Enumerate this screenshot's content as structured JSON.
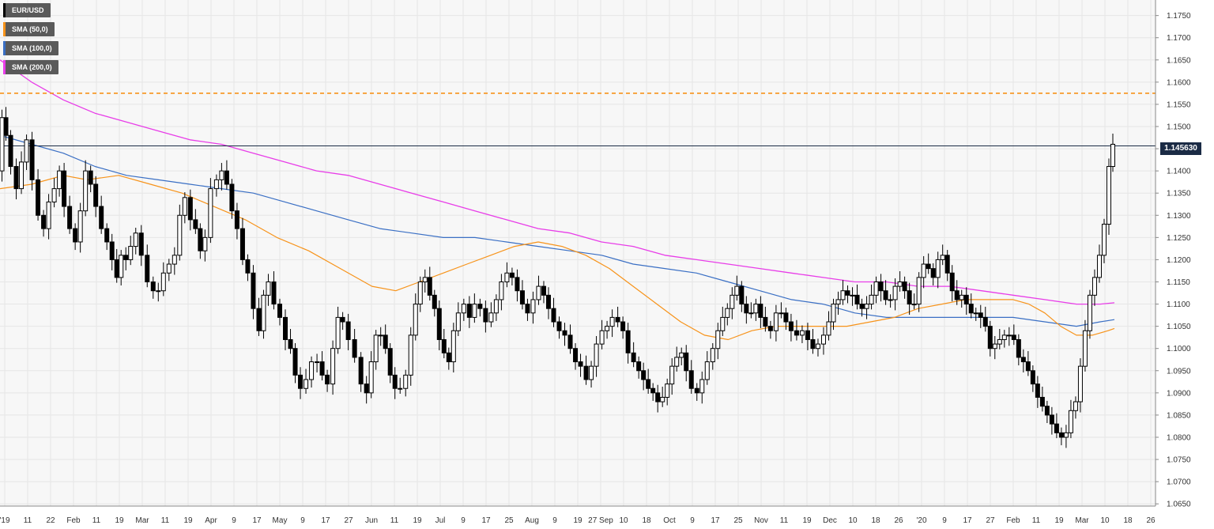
{
  "chart_data": {
    "type": "candlestick",
    "symbol": "EUR/USD",
    "last_price_label": "1.145630",
    "last_price": 1.14563,
    "resistance_level": 1.1575,
    "ylim": [
      1.0645,
      1.1785
    ],
    "y_ticks": [
      "1.0650",
      "1.0700",
      "1.0750",
      "1.0800",
      "1.0850",
      "1.0900",
      "1.0950",
      "1.1000",
      "1.1050",
      "1.1100",
      "1.1150",
      "1.1200",
      "1.1250",
      "1.1300",
      "1.1350",
      "1.1400",
      "1.1450",
      "1.1500",
      "1.1550",
      "1.1600",
      "1.1650",
      "1.1700",
      "1.1750"
    ],
    "x_ticks": [
      "'19",
      "11",
      "22",
      "Feb",
      "11",
      "19",
      "Mar",
      "11",
      "19",
      "Apr",
      "9",
      "17",
      "May",
      "9",
      "17",
      "27",
      "Jun",
      "11",
      "19",
      "Jul",
      "9",
      "17",
      "25",
      "Aug",
      "9",
      "19",
      "27 Sep",
      "10",
      "18",
      "Oct",
      "9",
      "17",
      "25",
      "Nov",
      "11",
      "19",
      "Dec",
      "10",
      "18",
      "26",
      "'20",
      "9",
      "17",
      "27",
      "Feb",
      "11",
      "19",
      "Mar",
      "10",
      "18",
      "26"
    ],
    "legend": [
      {
        "name": "EUR/USD",
        "color": "#000000"
      },
      {
        "name": "SMA (50,0)",
        "color": "#f7931a"
      },
      {
        "name": "SMA (100,0)",
        "color": "#3a6fc4"
      },
      {
        "name": "SMA (200,0)",
        "color": "#e83de8"
      }
    ],
    "price_path": [
      [
        0,
        1.14
      ],
      [
        5,
        1.152
      ],
      [
        10,
        1.148
      ],
      [
        17,
        1.141
      ],
      [
        24,
        1.136
      ],
      [
        30,
        1.142
      ],
      [
        37,
        1.147
      ],
      [
        44,
        1.138
      ],
      [
        52,
        1.13
      ],
      [
        58,
        1.127
      ],
      [
        65,
        1.133
      ],
      [
        72,
        1.136
      ],
      [
        78,
        1.14
      ],
      [
        84,
        1.132
      ],
      [
        92,
        1.127
      ],
      [
        98,
        1.124
      ],
      [
        105,
        1.131
      ],
      [
        111,
        1.14
      ],
      [
        118,
        1.137
      ],
      [
        124,
        1.132
      ],
      [
        132,
        1.127
      ],
      [
        138,
        1.124
      ],
      [
        145,
        1.12
      ],
      [
        150,
        1.116
      ],
      [
        156,
        1.121
      ],
      [
        162,
        1.12
      ],
      [
        168,
        1.123
      ],
      [
        175,
        1.126
      ],
      [
        182,
        1.121
      ],
      [
        190,
        1.115
      ],
      [
        197,
        1.113
      ],
      [
        203,
        1.113
      ],
      [
        210,
        1.117
      ],
      [
        217,
        1.119
      ],
      [
        224,
        1.121
      ],
      [
        230,
        1.13
      ],
      [
        237,
        1.134
      ],
      [
        244,
        1.129
      ],
      [
        250,
        1.127
      ],
      [
        256,
        1.122
      ],
      [
        262,
        1.125
      ],
      [
        270,
        1.136
      ],
      [
        277,
        1.138
      ],
      [
        283,
        1.14
      ],
      [
        290,
        1.137
      ],
      [
        296,
        1.131
      ],
      [
        303,
        1.127
      ],
      [
        310,
        1.12
      ],
      [
        316,
        1.117
      ],
      [
        324,
        1.109
      ],
      [
        330,
        1.104
      ],
      [
        336,
        1.112
      ],
      [
        342,
        1.115
      ],
      [
        350,
        1.11
      ],
      [
        357,
        1.107
      ],
      [
        364,
        1.102
      ],
      [
        370,
        1.1
      ],
      [
        376,
        1.094
      ],
      [
        383,
        1.091
      ],
      [
        390,
        1.093
      ],
      [
        397,
        1.097
      ],
      [
        404,
        1.097
      ],
      [
        410,
        1.094
      ],
      [
        417,
        1.092
      ],
      [
        424,
        1.1
      ],
      [
        430,
        1.107
      ],
      [
        436,
        1.106
      ],
      [
        444,
        1.102
      ],
      [
        452,
        1.098
      ],
      [
        460,
        1.092
      ],
      [
        466,
        1.09
      ],
      [
        472,
        1.097
      ],
      [
        478,
        1.103
      ],
      [
        484,
        1.103
      ],
      [
        490,
        1.1
      ],
      [
        496,
        1.094
      ],
      [
        502,
        1.091
      ],
      [
        509,
        1.091
      ],
      [
        516,
        1.094
      ],
      [
        522,
        1.103
      ],
      [
        528,
        1.11
      ],
      [
        534,
        1.115
      ],
      [
        540,
        1.116
      ],
      [
        546,
        1.112
      ],
      [
        552,
        1.109
      ],
      [
        558,
        1.102
      ],
      [
        564,
        1.099
      ],
      [
        570,
        1.097
      ],
      [
        576,
        1.104
      ],
      [
        582,
        1.108
      ],
      [
        590,
        1.11
      ],
      [
        596,
        1.107
      ],
      [
        603,
        1.11
      ],
      [
        610,
        1.109
      ],
      [
        617,
        1.106
      ],
      [
        624,
        1.108
      ],
      [
        630,
        1.111
      ],
      [
        637,
        1.115
      ],
      [
        644,
        1.117
      ],
      [
        650,
        1.116
      ],
      [
        657,
        1.113
      ],
      [
        663,
        1.11
      ],
      [
        670,
        1.108
      ],
      [
        677,
        1.111
      ],
      [
        684,
        1.114
      ],
      [
        690,
        1.112
      ],
      [
        696,
        1.109
      ],
      [
        703,
        1.106
      ],
      [
        710,
        1.104
      ],
      [
        717,
        1.103
      ],
      [
        724,
        1.1
      ],
      [
        730,
        1.097
      ],
      [
        737,
        1.096
      ],
      [
        744,
        1.093
      ],
      [
        750,
        1.096
      ],
      [
        757,
        1.101
      ],
      [
        764,
        1.104
      ],
      [
        770,
        1.105
      ],
      [
        777,
        1.107
      ],
      [
        784,
        1.106
      ],
      [
        790,
        1.104
      ],
      [
        797,
        1.099
      ],
      [
        804,
        1.097
      ],
      [
        810,
        1.095
      ],
      [
        816,
        1.093
      ],
      [
        822,
        1.091
      ],
      [
        828,
        1.09
      ],
      [
        834,
        1.088
      ],
      [
        840,
        1.089
      ],
      [
        846,
        1.092
      ],
      [
        852,
        1.096
      ],
      [
        858,
        1.098
      ],
      [
        864,
        1.099
      ],
      [
        870,
        1.095
      ],
      [
        877,
        1.091
      ],
      [
        884,
        1.09
      ],
      [
        890,
        1.093
      ],
      [
        897,
        1.097
      ],
      [
        904,
        1.1
      ],
      [
        910,
        1.104
      ],
      [
        916,
        1.107
      ],
      [
        922,
        1.109
      ],
      [
        928,
        1.112
      ],
      [
        934,
        1.114
      ],
      [
        940,
        1.11
      ],
      [
        946,
        1.108
      ],
      [
        952,
        1.108
      ],
      [
        958,
        1.11
      ],
      [
        964,
        1.107
      ],
      [
        970,
        1.105
      ],
      [
        977,
        1.104
      ],
      [
        984,
        1.108
      ],
      [
        990,
        1.108
      ],
      [
        996,
        1.106
      ],
      [
        1003,
        1.104
      ],
      [
        1010,
        1.103
      ],
      [
        1017,
        1.104
      ],
      [
        1024,
        1.102
      ],
      [
        1030,
        1.1
      ],
      [
        1037,
        1.101
      ],
      [
        1044,
        1.103
      ],
      [
        1050,
        1.106
      ],
      [
        1056,
        1.11
      ],
      [
        1062,
        1.111
      ],
      [
        1068,
        1.113
      ],
      [
        1074,
        1.112
      ],
      [
        1080,
        1.112
      ],
      [
        1086,
        1.11
      ],
      [
        1092,
        1.109
      ],
      [
        1098,
        1.11
      ],
      [
        1104,
        1.112
      ],
      [
        1110,
        1.115
      ],
      [
        1116,
        1.113
      ],
      [
        1122,
        1.111
      ],
      [
        1128,
        1.111
      ],
      [
        1134,
        1.114
      ],
      [
        1140,
        1.115
      ],
      [
        1146,
        1.113
      ],
      [
        1152,
        1.11
      ],
      [
        1158,
        1.11
      ],
      [
        1164,
        1.116
      ],
      [
        1170,
        1.119
      ],
      [
        1176,
        1.118
      ],
      [
        1182,
        1.116
      ],
      [
        1188,
        1.12
      ],
      [
        1194,
        1.121
      ],
      [
        1200,
        1.117
      ],
      [
        1206,
        1.113
      ],
      [
        1212,
        1.111
      ],
      [
        1218,
        1.112
      ],
      [
        1224,
        1.11
      ],
      [
        1230,
        1.108
      ],
      [
        1236,
        1.108
      ],
      [
        1242,
        1.107
      ],
      [
        1248,
        1.105
      ],
      [
        1254,
        1.1
      ],
      [
        1260,
        1.101
      ],
      [
        1266,
        1.102
      ],
      [
        1272,
        1.103
      ],
      [
        1278,
        1.103
      ],
      [
        1284,
        1.102
      ],
      [
        1290,
        1.098
      ],
      [
        1296,
        1.097
      ],
      [
        1302,
        1.095
      ],
      [
        1308,
        1.092
      ],
      [
        1314,
        1.089
      ],
      [
        1320,
        1.087
      ],
      [
        1326,
        1.085
      ],
      [
        1332,
        1.083
      ],
      [
        1338,
        1.081
      ],
      [
        1344,
        1.08
      ],
      [
        1350,
        1.081
      ],
      [
        1356,
        1.086
      ],
      [
        1362,
        1.088
      ],
      [
        1368,
        1.096
      ],
      [
        1374,
        1.104
      ],
      [
        1380,
        1.112
      ],
      [
        1386,
        1.116
      ],
      [
        1392,
        1.121
      ],
      [
        1398,
        1.128
      ],
      [
        1404,
        1.141
      ],
      [
        1408,
        1.146
      ]
    ],
    "sma50_path": [
      [
        0,
        1.136
      ],
      [
        40,
        1.137
      ],
      [
        80,
        1.139
      ],
      [
        110,
        1.138
      ],
      [
        150,
        1.139
      ],
      [
        190,
        1.137
      ],
      [
        230,
        1.135
      ],
      [
        270,
        1.132
      ],
      [
        310,
        1.129
      ],
      [
        350,
        1.125
      ],
      [
        390,
        1.122
      ],
      [
        430,
        1.118
      ],
      [
        470,
        1.114
      ],
      [
        500,
        1.113
      ],
      [
        530,
        1.115
      ],
      [
        560,
        1.117
      ],
      [
        590,
        1.119
      ],
      [
        620,
        1.121
      ],
      [
        650,
        1.123
      ],
      [
        680,
        1.124
      ],
      [
        710,
        1.123
      ],
      [
        740,
        1.121
      ],
      [
        770,
        1.118
      ],
      [
        800,
        1.114
      ],
      [
        830,
        1.11
      ],
      [
        860,
        1.106
      ],
      [
        890,
        1.103
      ],
      [
        920,
        1.102
      ],
      [
        950,
        1.104
      ],
      [
        980,
        1.105
      ],
      [
        1010,
        1.105
      ],
      [
        1040,
        1.105
      ],
      [
        1070,
        1.105
      ],
      [
        1100,
        1.106
      ],
      [
        1130,
        1.107
      ],
      [
        1160,
        1.109
      ],
      [
        1190,
        1.11
      ],
      [
        1220,
        1.111
      ],
      [
        1250,
        1.111
      ],
      [
        1280,
        1.111
      ],
      [
        1300,
        1.11
      ],
      [
        1320,
        1.108
      ],
      [
        1340,
        1.105
      ],
      [
        1360,
        1.103
      ],
      [
        1380,
        1.103
      ],
      [
        1400,
        1.104
      ],
      [
        1408,
        1.1045
      ]
    ],
    "sma100_path": [
      [
        0,
        1.148
      ],
      [
        40,
        1.146
      ],
      [
        80,
        1.144
      ],
      [
        120,
        1.141
      ],
      [
        160,
        1.139
      ],
      [
        200,
        1.138
      ],
      [
        240,
        1.137
      ],
      [
        280,
        1.136
      ],
      [
        320,
        1.135
      ],
      [
        360,
        1.133
      ],
      [
        400,
        1.131
      ],
      [
        440,
        1.129
      ],
      [
        480,
        1.127
      ],
      [
        520,
        1.126
      ],
      [
        560,
        1.125
      ],
      [
        600,
        1.125
      ],
      [
        640,
        1.124
      ],
      [
        680,
        1.123
      ],
      [
        720,
        1.122
      ],
      [
        760,
        1.121
      ],
      [
        800,
        1.119
      ],
      [
        840,
        1.118
      ],
      [
        880,
        1.117
      ],
      [
        920,
        1.115
      ],
      [
        960,
        1.113
      ],
      [
        1000,
        1.111
      ],
      [
        1040,
        1.11
      ],
      [
        1080,
        1.108
      ],
      [
        1120,
        1.107
      ],
      [
        1160,
        1.107
      ],
      [
        1200,
        1.107
      ],
      [
        1240,
        1.107
      ],
      [
        1280,
        1.107
      ],
      [
        1320,
        1.106
      ],
      [
        1360,
        1.105
      ],
      [
        1390,
        1.106
      ],
      [
        1408,
        1.1065
      ]
    ],
    "sma200_path": [
      [
        0,
        1.165
      ],
      [
        40,
        1.16
      ],
      [
        80,
        1.156
      ],
      [
        120,
        1.153
      ],
      [
        160,
        1.151
      ],
      [
        200,
        1.149
      ],
      [
        240,
        1.147
      ],
      [
        280,
        1.146
      ],
      [
        320,
        1.144
      ],
      [
        360,
        1.142
      ],
      [
        400,
        1.14
      ],
      [
        440,
        1.139
      ],
      [
        480,
        1.137
      ],
      [
        520,
        1.135
      ],
      [
        560,
        1.133
      ],
      [
        600,
        1.131
      ],
      [
        640,
        1.129
      ],
      [
        680,
        1.127
      ],
      [
        720,
        1.126
      ],
      [
        760,
        1.124
      ],
      [
        800,
        1.123
      ],
      [
        840,
        1.121
      ],
      [
        880,
        1.12
      ],
      [
        920,
        1.119
      ],
      [
        960,
        1.118
      ],
      [
        1000,
        1.117
      ],
      [
        1040,
        1.116
      ],
      [
        1080,
        1.115
      ],
      [
        1120,
        1.115
      ],
      [
        1160,
        1.114
      ],
      [
        1200,
        1.114
      ],
      [
        1240,
        1.113
      ],
      [
        1280,
        1.112
      ],
      [
        1320,
        1.111
      ],
      [
        1360,
        1.11
      ],
      [
        1390,
        1.11
      ],
      [
        1408,
        1.1103
      ]
    ],
    "colors": {
      "price": "#000000",
      "sma50": "#f7931a",
      "sma100": "#3a6fc4",
      "sma200": "#e83de8",
      "resistance": "#f7931a",
      "current_line": "#1b2b45",
      "grid": "#e6e6e6",
      "plot_bg": "#f7f7f7"
    }
  }
}
